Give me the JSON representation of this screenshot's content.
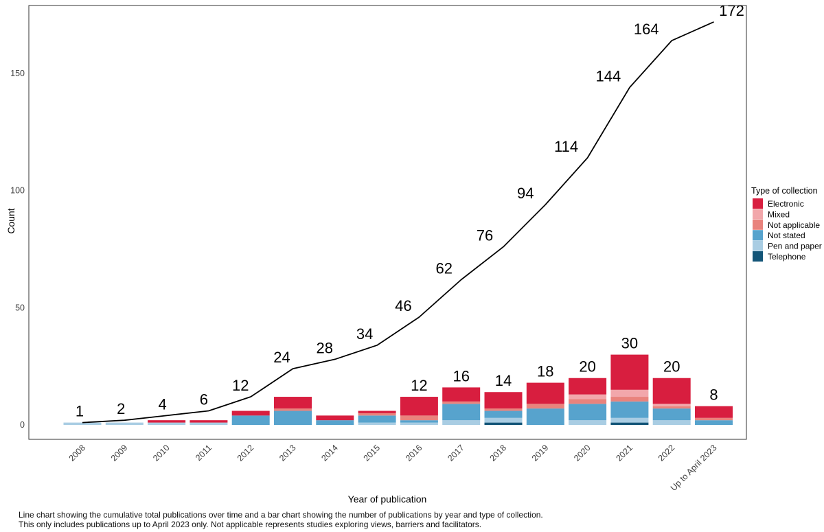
{
  "figure": {
    "ylabel": "Count",
    "xlabel": "Year of publication",
    "caption_line1": "Line chart showing the cumulative total publications over time and a bar chart showing the number of publications by year and type of collection.",
    "caption_line2": "This only includes publications up to April 2023 only. Not applicable represents studies exploring views, barriers and facilitators."
  },
  "colors": {
    "electronic": "#D81E3F",
    "mixed": "#F2A7AB",
    "not_applicable": "#E9837D",
    "not_stated": "#57A3CD",
    "pen_and_paper": "#A9CDE3",
    "telephone": "#135578",
    "line": "#000000",
    "panel_border": "#333333",
    "tick_text": "#404040",
    "label_text": "#000000"
  },
  "chart_data": {
    "type": "bar",
    "subtype": "stacked-bars-with-cumulative-line",
    "title": "",
    "xlabel": "Year of publication",
    "ylabel": "Count",
    "ylim": [
      0,
      180
    ],
    "yticks": [
      0,
      50,
      100,
      150
    ],
    "grid": "off",
    "categories": [
      "2008",
      "2009",
      "2010",
      "2011",
      "2012",
      "2013",
      "2014",
      "2015",
      "2016",
      "2017",
      "2018",
      "2019",
      "2020",
      "2021",
      "2022",
      "Up to April 2023"
    ],
    "line_series": {
      "name": "Cumulative total publications",
      "values": [
        1,
        2,
        4,
        6,
        12,
        24,
        28,
        34,
        46,
        62,
        76,
        94,
        114,
        144,
        164,
        172
      ],
      "point_labels": [
        "1",
        "2",
        "4",
        "6",
        "12",
        "24",
        "28",
        "34",
        "46",
        "62",
        "76",
        "94",
        "114",
        "144",
        "164",
        "172"
      ]
    },
    "series": [
      {
        "name": "Electronic",
        "color_key": "electronic",
        "values": [
          0,
          0,
          1,
          1,
          2,
          5,
          2,
          1,
          8,
          6,
          7,
          9,
          7,
          15,
          11,
          5
        ]
      },
      {
        "name": "Mixed",
        "color_key": "mixed",
        "values": [
          0,
          0,
          0,
          0,
          0,
          0,
          0,
          0,
          0,
          0,
          0,
          0,
          2,
          3,
          1,
          0
        ]
      },
      {
        "name": "Not applicable",
        "color_key": "not_applicable",
        "values": [
          0,
          0,
          0,
          0,
          0,
          1,
          0,
          1,
          2,
          1,
          1,
          2,
          2,
          2,
          1,
          1
        ]
      },
      {
        "name": "Not stated",
        "color_key": "not_stated",
        "values": [
          0,
          0,
          0,
          0,
          4,
          6,
          2,
          3,
          1,
          7,
          3,
          7,
          7,
          7,
          5,
          2
        ]
      },
      {
        "name": "Pen and paper",
        "color_key": "pen_and_paper",
        "values": [
          1,
          1,
          1,
          1,
          0,
          0,
          0,
          1,
          1,
          2,
          2,
          0,
          2,
          2,
          2,
          0
        ]
      },
      {
        "name": "Telephone",
        "color_key": "telephone",
        "values": [
          0,
          0,
          0,
          0,
          0,
          0,
          0,
          0,
          0,
          0,
          1,
          0,
          0,
          1,
          0,
          0
        ]
      }
    ],
    "bar_totals": [
      1,
      1,
      2,
      2,
      6,
      12,
      4,
      6,
      12,
      16,
      14,
      18,
      20,
      30,
      20,
      8
    ],
    "bar_value_labels": {
      "start_index": 8,
      "values": [
        "12",
        "16",
        "14",
        "18",
        "20",
        "30",
        "20",
        "8"
      ]
    },
    "legend": {
      "title": "Type of collection",
      "position": "right",
      "entries": [
        {
          "label": "Electronic",
          "color_key": "electronic"
        },
        {
          "label": "Mixed",
          "color_key": "mixed"
        },
        {
          "label": "Not applicable",
          "color_key": "not_applicable"
        },
        {
          "label": "Not stated",
          "color_key": "not_stated"
        },
        {
          "label": "Pen and paper",
          "color_key": "pen_and_paper"
        },
        {
          "label": "Telephone",
          "color_key": "telephone"
        }
      ]
    }
  }
}
